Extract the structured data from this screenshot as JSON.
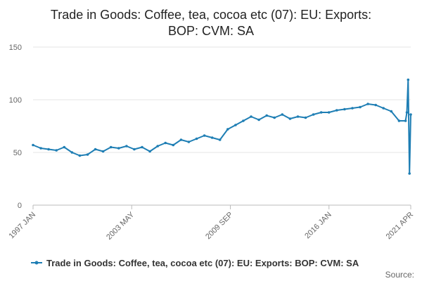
{
  "chart_data": {
    "type": "line",
    "title_line1": "Trade in Goods: Coffee, tea, cocoa etc (07): EU: Exports:",
    "title_line2": "BOP: CVM: SA",
    "xlabel": "",
    "ylabel": "",
    "ylim": [
      0,
      150
    ],
    "y_ticks": [
      "0",
      "50",
      "100",
      "150"
    ],
    "x_tick_labels": [
      "1997 JAN",
      "2003 MAY",
      "2009 SEP",
      "2016 JAN",
      "2021 APR"
    ],
    "x_range": [
      "1997 JAN",
      "2021 APR"
    ],
    "grid": "horizontal",
    "legend_position": "bottom",
    "line_color": "#1e7eb4",
    "series": [
      {
        "name": "Trade in Goods: Coffee, tea, cocoa etc (07): EU: Exports: BOP: CVM: SA",
        "x": [
          "1997 JAN",
          "1997 JUL",
          "1998 JAN",
          "1998 JUL",
          "1999 JAN",
          "1999 JUL",
          "2000 JAN",
          "2000 JUL",
          "2001 JAN",
          "2001 JUL",
          "2002 JAN",
          "2002 JUL",
          "2003 JAN",
          "2003 JUL",
          "2004 JAN",
          "2004 JUL",
          "2005 JAN",
          "2005 JUL",
          "2006 JAN",
          "2006 JUL",
          "2007 JAN",
          "2007 JUL",
          "2008 JAN",
          "2008 JUL",
          "2009 JAN",
          "2009 JUL",
          "2010 JAN",
          "2010 JUL",
          "2011 JAN",
          "2011 JUL",
          "2012 JAN",
          "2012 JUL",
          "2013 JAN",
          "2013 JUL",
          "2014 JAN",
          "2014 JUL",
          "2015 JAN",
          "2015 JUL",
          "2016 JAN",
          "2016 JUL",
          "2017 JAN",
          "2017 JUL",
          "2018 JAN",
          "2018 JUL",
          "2019 JAN",
          "2019 JUL",
          "2020 JAN",
          "2020 JUL",
          "2020 DEC",
          "2021 JAN",
          "2021 FEB",
          "2021 MAR",
          "2021 APR"
        ],
        "values": [
          57,
          54,
          53,
          52,
          55,
          50,
          47,
          48,
          53,
          51,
          55,
          54,
          56,
          53,
          55,
          51,
          56,
          59,
          57,
          62,
          60,
          63,
          66,
          64,
          62,
          72,
          76,
          80,
          84,
          81,
          85,
          83,
          86,
          82,
          84,
          83,
          86,
          88,
          88,
          90,
          91,
          92,
          93,
          96,
          95,
          92,
          89,
          80,
          80,
          88,
          119,
          30,
          86
        ]
      }
    ]
  },
  "source_label": "Source:"
}
